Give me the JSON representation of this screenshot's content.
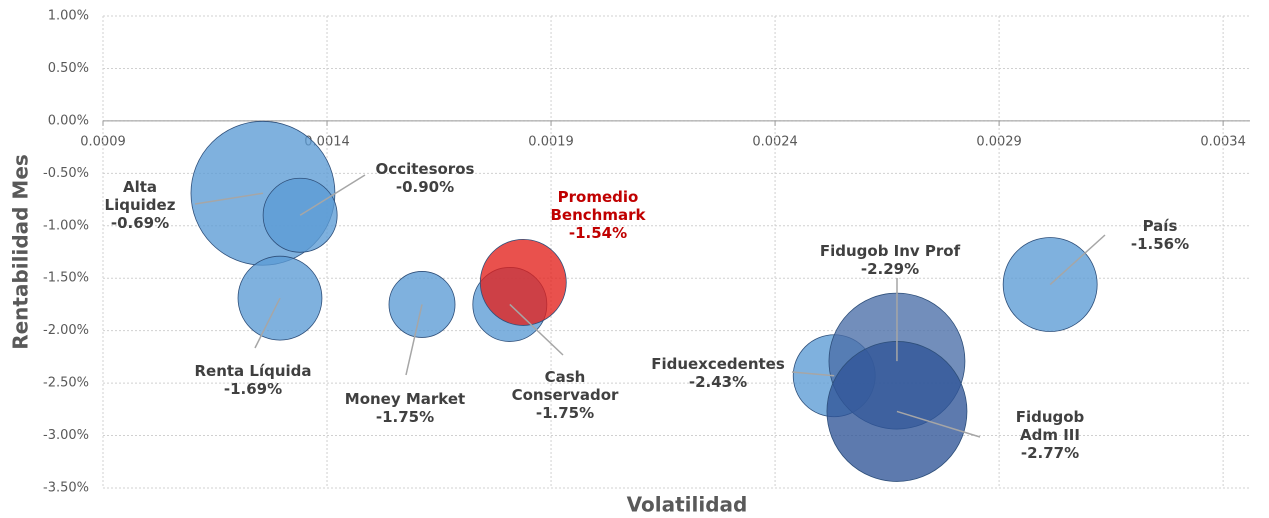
{
  "chart_data": {
    "type": "bubble",
    "x_label": "Volatilidad",
    "y_label": "Rentabilidad Mes",
    "labels": [
      "Alta Liquidez",
      "Occitesoros",
      "Renta Líquida",
      "Money Market",
      "Cash Conservador",
      "Promedio Benchmark",
      "Fiduexcedentes",
      "Fidugob Inv Prof",
      "Fidugob Adm III",
      "País"
    ],
    "x": [
      0.001257,
      0.00134,
      0.001295,
      0.001612,
      0.001808,
      0.001838,
      0.002532,
      0.002672,
      0.002672,
      0.003014
    ],
    "values": [
      -0.69,
      -0.9,
      -1.69,
      -1.75,
      -1.75,
      -1.54,
      -2.43,
      -2.29,
      -2.77,
      -1.56
    ],
    "value_labels": [
      "-0.69%",
      "-0.90%",
      "-1.69%",
      "-1.75%",
      "-1.75%",
      "-1.54%",
      "-2.43%",
      "-2.29%",
      "-2.77%",
      "-1.56%"
    ],
    "sizes": [
      51.8,
      13.7,
      17.6,
      10.9,
      13.7,
      18.5,
      16.8,
      46.2,
      49,
      22.1
    ],
    "colors": [
      "#5b9bd5",
      "#5b9bd5",
      "#5b9bd5",
      "#5b9bd5",
      "#5b9bd5",
      "#e3201b",
      "#5b9bd5",
      "#4a6ea8",
      "#2f5597",
      "#5b9bd5"
    ],
    "xlim": [
      0.0009,
      0.00346
    ],
    "xticks": [
      0.0009,
      0.0014,
      0.0019,
      0.0024,
      0.0029,
      0.0034
    ],
    "ylim": [
      -3.5,
      1
    ],
    "yticks": [
      {
        "value": 1,
        "label": "1.00%"
      },
      {
        "value": 0.5,
        "label": "0.50%"
      },
      {
        "value": 0,
        "label": "0.00%"
      },
      {
        "value": -0.5,
        "label": "-0.50%"
      },
      {
        "value": -1,
        "label": "-1.00%"
      },
      {
        "value": -1.5,
        "label": "-1.50%"
      },
      {
        "value": -2,
        "label": "-2.00%"
      },
      {
        "value": -2.5,
        "label": "-2.50%"
      },
      {
        "value": -3,
        "label": "-3.00%"
      },
      {
        "value": -3.5,
        "label": "-3.50%"
      }
    ],
    "grid": true
  }
}
